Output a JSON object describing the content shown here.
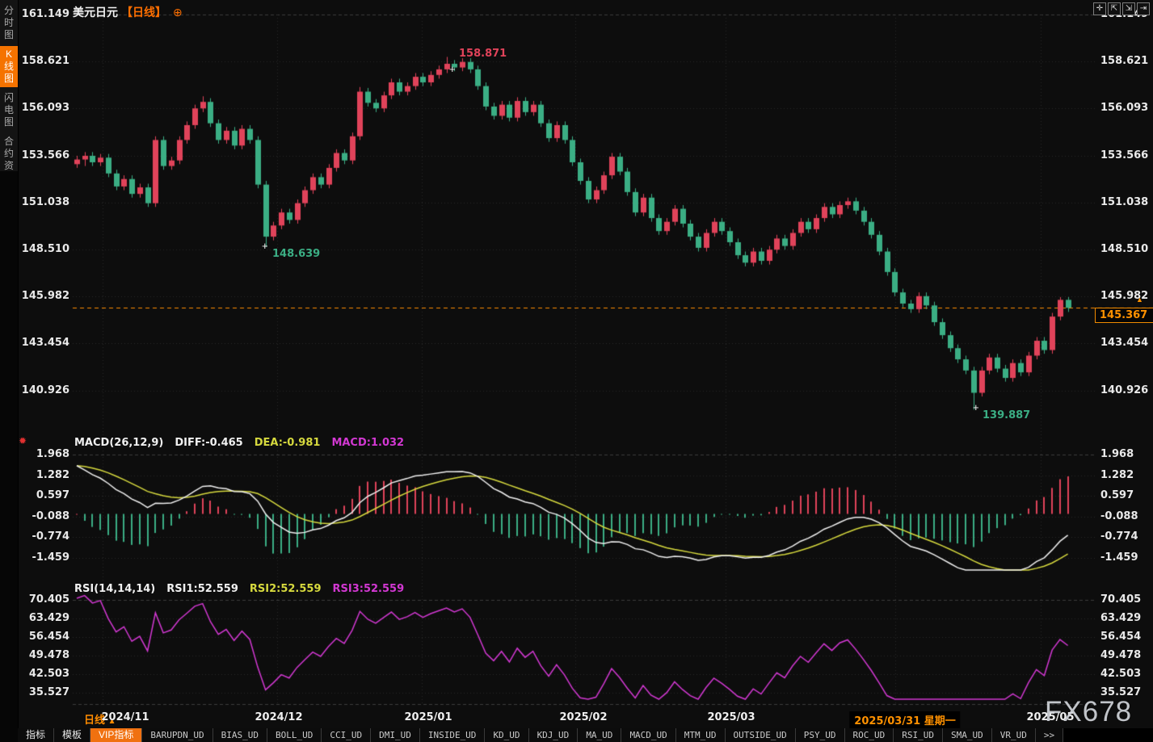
{
  "window": {
    "symbol": "美元日元",
    "period": "【日线】",
    "locate_icon": "⊕"
  },
  "toolbar": {
    "buttons": [
      {
        "name": "pan-tool-icon",
        "glyph": "✛"
      },
      {
        "name": "fit-price-icon",
        "glyph": "⇱"
      },
      {
        "name": "fit-time-icon",
        "glyph": "⇲"
      },
      {
        "name": "pop-out-icon",
        "glyph": "⇥"
      }
    ]
  },
  "sidebar": {
    "items": [
      {
        "label": "分时图",
        "active": false
      },
      {
        "label": "K线图",
        "active": true
      },
      {
        "label": "闪电图",
        "active": false
      },
      {
        "label": "合约资料",
        "active": false
      }
    ]
  },
  "main_chart": {
    "high_label": "158.871",
    "swing_low_label": "148.639",
    "low_label": "139.887",
    "current_price": "145.367",
    "up_arrow": "▲",
    "cross_marker": "+"
  },
  "macd_panel": {
    "title": "MACD(26,12,9)",
    "diff_text": "DIFF:-0.465",
    "dea_text": "DEA:-0.981",
    "macd_text": "MACD:1.032",
    "settings_icon": "✹"
  },
  "rsi_panel": {
    "title": "RSI(14,14,14)",
    "rsi1_text": "RSI1:52.559",
    "rsi2_text": "RSI2:52.559",
    "rsi3_text": "RSI3:52.559"
  },
  "x_axis": {
    "period_label": "日线",
    "period_arrow": "▲",
    "labels": [
      "2024/11",
      "2024/12",
      "2025/01",
      "2025/02",
      "2025/03"
    ],
    "highlight_label": "2025/03/31 星期一",
    "last_label": "2025/05"
  },
  "tab_bar": {
    "active_index": 2,
    "tabs": [
      "指标",
      "模板",
      "VIP指标",
      "BARUPDN_UD",
      "BIAS_UD",
      "BOLL_UD",
      "CCI_UD",
      "DMI_UD",
      "INSIDE_UD",
      "KD_UD",
      "KDJ_UD",
      "MA_UD",
      "MACD_UD",
      "MTM_UD",
      "OUTSIDE_UD",
      "PSY_UD",
      "ROC_UD",
      "RSI_UD",
      "SMA_UD",
      "VR_UD",
      ">>"
    ]
  },
  "watermark": "FX678",
  "colors": {
    "accent_orange": "#f57300",
    "price_line_orange": "#ff8c00",
    "up_red": "#e0435a",
    "down_green": "#3bae84",
    "dea_yellow": "#d6d93e",
    "diff_white": "#f0f0f0",
    "rsi_magenta": "#d238d2",
    "grid": "#2a2a2a",
    "grid_bright": "#3c3c3c",
    "axis_text": "#e9e9e9"
  },
  "chart_data": [
    {
      "type": "candlestick",
      "symbol": "美元日元 (USD/JPY)",
      "period": "日线",
      "y_ticks": [
        161.149,
        158.621,
        156.093,
        153.566,
        151.038,
        148.51,
        145.982,
        143.454,
        140.926
      ],
      "x_labels": [
        "2024/11",
        "2024/12",
        "2025/01",
        "2025/02",
        "2025/03",
        "2025/03/31",
        "2025/05"
      ],
      "high": 158.871,
      "low": 139.887,
      "swing_low": 148.639,
      "last_price": 145.367,
      "candles": [
        [
          153.1,
          153.55,
          152.9,
          153.35
        ],
        [
          153.35,
          153.75,
          153.0,
          153.55
        ],
        [
          153.55,
          153.75,
          153.0,
          153.2
        ],
        [
          153.2,
          153.65,
          153.0,
          153.45
        ],
        [
          153.45,
          153.65,
          152.4,
          152.6
        ],
        [
          152.6,
          152.8,
          151.7,
          151.9
        ],
        [
          151.9,
          152.5,
          151.7,
          152.3
        ],
        [
          152.3,
          152.5,
          151.3,
          151.5
        ],
        [
          151.5,
          152.05,
          151.3,
          151.85
        ],
        [
          151.85,
          152.05,
          150.8,
          151.0
        ],
        [
          151.0,
          154.6,
          150.8,
          154.4
        ],
        [
          154.4,
          154.6,
          152.8,
          153.0
        ],
        [
          153.0,
          153.5,
          152.8,
          153.3
        ],
        [
          153.3,
          154.6,
          153.1,
          154.4
        ],
        [
          154.4,
          155.4,
          154.2,
          155.2
        ],
        [
          155.2,
          156.3,
          155.0,
          156.1
        ],
        [
          156.1,
          156.75,
          155.9,
          156.45
        ],
        [
          156.45,
          156.65,
          155.1,
          155.3
        ],
        [
          155.3,
          155.5,
          154.2,
          154.4
        ],
        [
          154.4,
          155.1,
          154.2,
          154.9
        ],
        [
          154.9,
          155.1,
          153.9,
          154.1
        ],
        [
          154.1,
          155.2,
          153.9,
          155.0
        ],
        [
          155.0,
          155.2,
          154.2,
          154.4
        ],
        [
          154.4,
          154.6,
          151.8,
          152.0
        ],
        [
          152.0,
          152.2,
          148.64,
          149.2
        ],
        [
          149.2,
          150.0,
          149.0,
          149.8
        ],
        [
          149.8,
          150.7,
          149.6,
          150.5
        ],
        [
          150.5,
          150.7,
          149.9,
          150.1
        ],
        [
          150.1,
          151.2,
          149.9,
          151.0
        ],
        [
          151.0,
          151.9,
          150.8,
          151.7
        ],
        [
          151.7,
          152.6,
          151.5,
          152.4
        ],
        [
          152.4,
          152.6,
          151.8,
          152.0
        ],
        [
          152.0,
          153.1,
          151.8,
          152.9
        ],
        [
          152.9,
          153.9,
          152.7,
          153.7
        ],
        [
          153.7,
          153.9,
          153.1,
          153.3
        ],
        [
          153.3,
          154.8,
          153.1,
          154.6
        ],
        [
          154.6,
          157.25,
          154.4,
          157.0
        ],
        [
          157.0,
          157.2,
          156.2,
          156.4
        ],
        [
          156.4,
          156.6,
          155.9,
          156.1
        ],
        [
          156.1,
          157.0,
          155.9,
          156.8
        ],
        [
          156.8,
          157.7,
          156.6,
          157.5
        ],
        [
          157.5,
          157.7,
          156.8,
          157.0
        ],
        [
          157.0,
          157.5,
          156.8,
          157.3
        ],
        [
          157.3,
          158.0,
          157.1,
          157.8
        ],
        [
          157.8,
          158.0,
          157.3,
          157.5
        ],
        [
          157.5,
          158.1,
          157.3,
          157.9
        ],
        [
          157.9,
          158.4,
          157.7,
          158.2
        ],
        [
          158.2,
          158.87,
          158.0,
          158.5
        ],
        [
          158.5,
          158.7,
          158.1,
          158.3
        ],
        [
          158.3,
          158.8,
          158.1,
          158.6
        ],
        [
          158.6,
          158.8,
          158.0,
          158.2
        ],
        [
          158.2,
          158.4,
          157.1,
          157.3
        ],
        [
          157.3,
          157.5,
          156.0,
          156.2
        ],
        [
          156.2,
          156.4,
          155.5,
          155.7
        ],
        [
          155.7,
          156.5,
          155.5,
          156.3
        ],
        [
          156.3,
          156.5,
          155.4,
          155.6
        ],
        [
          155.6,
          156.7,
          155.4,
          156.5
        ],
        [
          156.5,
          156.7,
          155.7,
          155.9
        ],
        [
          155.9,
          156.5,
          155.7,
          156.3
        ],
        [
          156.3,
          156.5,
          155.1,
          155.3
        ],
        [
          155.3,
          155.5,
          154.3,
          154.5
        ],
        [
          154.5,
          155.4,
          154.3,
          155.2
        ],
        [
          155.2,
          155.4,
          154.2,
          154.4
        ],
        [
          154.4,
          154.6,
          153.0,
          153.2
        ],
        [
          153.2,
          153.4,
          152.0,
          152.2
        ],
        [
          152.2,
          152.4,
          151.0,
          151.2
        ],
        [
          151.2,
          151.9,
          151.0,
          151.7
        ],
        [
          151.7,
          152.7,
          151.5,
          152.5
        ],
        [
          152.5,
          153.7,
          152.3,
          153.5
        ],
        [
          153.5,
          153.7,
          152.5,
          152.7
        ],
        [
          152.7,
          152.9,
          151.4,
          151.6
        ],
        [
          151.6,
          151.8,
          150.3,
          150.5
        ],
        [
          150.5,
          151.5,
          150.3,
          151.3
        ],
        [
          151.3,
          151.5,
          150.0,
          150.2
        ],
        [
          150.2,
          150.4,
          149.3,
          149.5
        ],
        [
          149.5,
          150.2,
          149.3,
          150.0
        ],
        [
          150.0,
          150.9,
          149.8,
          150.7
        ],
        [
          150.7,
          150.9,
          149.7,
          149.9
        ],
        [
          149.9,
          150.1,
          149.0,
          149.2
        ],
        [
          149.2,
          149.4,
          148.4,
          148.6
        ],
        [
          148.6,
          149.6,
          148.4,
          149.4
        ],
        [
          149.4,
          150.2,
          149.2,
          150.0
        ],
        [
          150.0,
          150.2,
          149.3,
          149.5
        ],
        [
          149.5,
          149.7,
          148.7,
          148.9
        ],
        [
          148.9,
          149.1,
          148.0,
          148.2
        ],
        [
          148.2,
          148.4,
          147.6,
          147.8
        ],
        [
          147.8,
          148.6,
          147.6,
          148.4
        ],
        [
          148.4,
          148.6,
          147.7,
          147.9
        ],
        [
          147.9,
          148.7,
          147.7,
          148.5
        ],
        [
          148.5,
          149.3,
          148.3,
          149.1
        ],
        [
          149.1,
          149.3,
          148.5,
          148.7
        ],
        [
          148.7,
          149.6,
          148.5,
          149.4
        ],
        [
          149.4,
          150.2,
          149.2,
          150.0
        ],
        [
          150.0,
          150.2,
          149.4,
          149.6
        ],
        [
          149.6,
          150.4,
          149.4,
          150.2
        ],
        [
          150.2,
          151.0,
          150.0,
          150.8
        ],
        [
          150.8,
          151.0,
          150.2,
          150.4
        ],
        [
          150.4,
          151.1,
          150.2,
          150.9
        ],
        [
          150.9,
          151.3,
          150.7,
          151.1
        ],
        [
          151.1,
          151.3,
          150.4,
          150.6
        ],
        [
          150.6,
          150.8,
          149.8,
          150.0
        ],
        [
          150.0,
          150.2,
          149.1,
          149.3
        ],
        [
          149.3,
          149.5,
          148.2,
          148.4
        ],
        [
          148.4,
          148.6,
          147.1,
          147.3
        ],
        [
          147.3,
          147.5,
          146.0,
          146.2
        ],
        [
          146.2,
          146.4,
          145.4,
          145.6
        ],
        [
          145.6,
          145.8,
          145.1,
          145.3
        ],
        [
          145.3,
          146.2,
          145.1,
          146.0
        ],
        [
          146.0,
          146.2,
          145.3,
          145.5
        ],
        [
          145.5,
          145.7,
          144.4,
          144.6
        ],
        [
          144.6,
          144.8,
          143.7,
          143.9
        ],
        [
          143.9,
          144.1,
          143.0,
          143.2
        ],
        [
          143.2,
          143.4,
          142.4,
          142.6
        ],
        [
          142.6,
          142.8,
          141.8,
          142.0
        ],
        [
          142.0,
          142.2,
          139.89,
          140.8
        ],
        [
          140.8,
          142.2,
          140.6,
          142.0
        ],
        [
          142.0,
          142.9,
          141.8,
          142.7
        ],
        [
          142.7,
          142.9,
          141.9,
          142.1
        ],
        [
          142.1,
          142.3,
          141.4,
          141.6
        ],
        [
          141.6,
          142.6,
          141.4,
          142.4
        ],
        [
          142.4,
          142.6,
          141.7,
          141.9
        ],
        [
          141.9,
          143.0,
          141.7,
          142.8
        ],
        [
          142.8,
          143.8,
          142.6,
          143.6
        ],
        [
          143.6,
          143.8,
          142.9,
          143.1
        ],
        [
          143.1,
          145.1,
          142.9,
          144.9
        ],
        [
          144.9,
          145.95,
          144.7,
          145.8
        ],
        [
          145.8,
          145.95,
          145.15,
          145.37
        ]
      ]
    },
    {
      "type": "macd",
      "name": "MACD(26,12,9)",
      "fast": 12,
      "slow": 26,
      "signal": 9,
      "diff": -0.465,
      "dea": -0.981,
      "macd": 1.032,
      "y_ticks": [
        1.968,
        1.282,
        0.597,
        -0.088,
        -0.774,
        -1.459
      ]
    },
    {
      "type": "rsi",
      "name": "RSI(14,14,14)",
      "periods": [
        14,
        14,
        14
      ],
      "rsi1": 52.559,
      "rsi2": 52.559,
      "rsi3": 52.559,
      "y_ticks": [
        70.405,
        63.429,
        56.454,
        49.478,
        42.503,
        35.527
      ]
    }
  ]
}
